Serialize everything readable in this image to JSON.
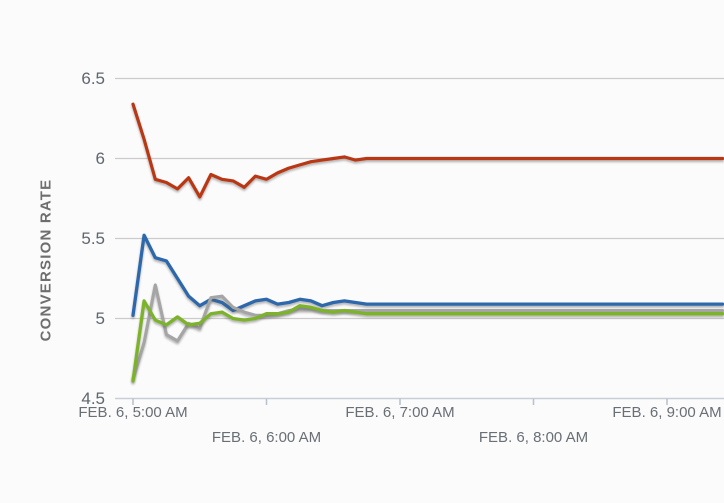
{
  "page": {
    "background_color": "#fbfbfb"
  },
  "chart_data": {
    "type": "line",
    "title": "",
    "xlabel": "",
    "ylabel": "CONVERSION RATE",
    "grid": "horizontal-only",
    "legend": "none",
    "y_axis": {
      "range": [
        4.5,
        6.5
      ],
      "tick_values": [
        6.5,
        6,
        5.5,
        5,
        4.5
      ],
      "tick_labels": [
        "6.5",
        "6",
        "5.5",
        "5",
        "4.5"
      ]
    },
    "x_axis": {
      "tick_labels": [
        "FEB. 6, 5:00 AM",
        "FEB. 6, 6:00 AM",
        "FEB. 6, 7:00 AM",
        "FEB. 6, 8:00 AM",
        "FEB. 6, 9:00 AM"
      ],
      "labels_staggered": true,
      "start_label": "FEB. 6, 5:00 AM",
      "point_interval_minutes": 5
    },
    "colors": {
      "grid_line": "#cbcbcb",
      "axis_line": "#c6cfd8",
      "tick_mark": "#b9c4cf",
      "axis_text": "#686f75"
    },
    "series": [
      {
        "name": "blue-line",
        "color": "#2c68ab",
        "stroke_width": 3.3,
        "values": [
          5.02,
          5.52,
          5.38,
          5.36,
          5.25,
          5.14,
          5.08,
          5.12,
          5.1,
          5.05,
          5.08,
          5.11,
          5.12,
          5.09,
          5.1,
          5.12,
          5.11,
          5.08,
          5.1,
          5.11,
          5.1,
          5.09,
          5.09,
          5.09,
          5.09,
          5.09,
          5.09,
          5.09,
          5.09,
          5.09,
          5.09,
          5.09,
          5.09,
          5.09,
          5.09,
          5.09,
          5.09,
          5.09,
          5.09,
          5.09,
          5.09,
          5.09,
          5.09,
          5.09,
          5.09,
          5.09,
          5.09,
          5.09,
          5.09,
          5.09,
          5.09,
          5.09,
          5.09,
          5.09
        ]
      },
      {
        "name": "gray-line",
        "color": "#a5a5a5",
        "stroke_width": 3.1,
        "values": [
          4.62,
          4.85,
          5.21,
          4.9,
          4.86,
          4.97,
          4.94,
          5.13,
          5.14,
          5.07,
          5.04,
          5.02,
          5.02,
          5.03,
          5.05,
          5.06,
          5.06,
          5.05,
          5.05,
          5.05,
          5.05,
          5.05,
          5.05,
          5.05,
          5.05,
          5.05,
          5.05,
          5.05,
          5.05,
          5.05,
          5.05,
          5.05,
          5.05,
          5.05,
          5.05,
          5.05,
          5.05,
          5.05,
          5.05,
          5.05,
          5.05,
          5.05,
          5.05,
          5.05,
          5.05,
          5.05,
          5.05,
          5.05,
          5.05,
          5.05,
          5.05,
          5.05,
          5.05,
          5.05
        ]
      },
      {
        "name": "green-line",
        "color": "#7cb32a",
        "stroke_width": 3.3,
        "values": [
          4.61,
          5.11,
          4.99,
          4.96,
          5.01,
          4.96,
          4.97,
          5.03,
          5.04,
          5.0,
          4.99,
          5.0,
          5.03,
          5.03,
          5.04,
          5.08,
          5.07,
          5.05,
          5.04,
          5.05,
          5.04,
          5.03,
          5.03,
          5.03,
          5.03,
          5.03,
          5.03,
          5.03,
          5.03,
          5.03,
          5.03,
          5.03,
          5.03,
          5.03,
          5.03,
          5.03,
          5.03,
          5.03,
          5.03,
          5.03,
          5.03,
          5.03,
          5.03,
          5.03,
          5.03,
          5.03,
          5.03,
          5.03,
          5.03,
          5.03,
          5.03,
          5.03,
          5.03,
          5.03
        ]
      },
      {
        "name": "red-line",
        "color": "#ba3714",
        "stroke_width": 3.2,
        "values": [
          6.34,
          6.12,
          5.87,
          5.85,
          5.81,
          5.88,
          5.76,
          5.9,
          5.87,
          5.86,
          5.82,
          5.89,
          5.87,
          5.91,
          5.94,
          5.96,
          5.98,
          5.99,
          6.0,
          6.01,
          5.99,
          6.0,
          6.0,
          6.0,
          6.0,
          6.0,
          6.0,
          6.0,
          6.0,
          6.0,
          6.0,
          6.0,
          6.0,
          6.0,
          6.0,
          6.0,
          6.0,
          6.0,
          6.0,
          6.0,
          6.0,
          6.0,
          6.0,
          6.0,
          6.0,
          6.0,
          6.0,
          6.0,
          6.0,
          6.0,
          6.0,
          6.0,
          6.0,
          6.0
        ]
      }
    ]
  }
}
